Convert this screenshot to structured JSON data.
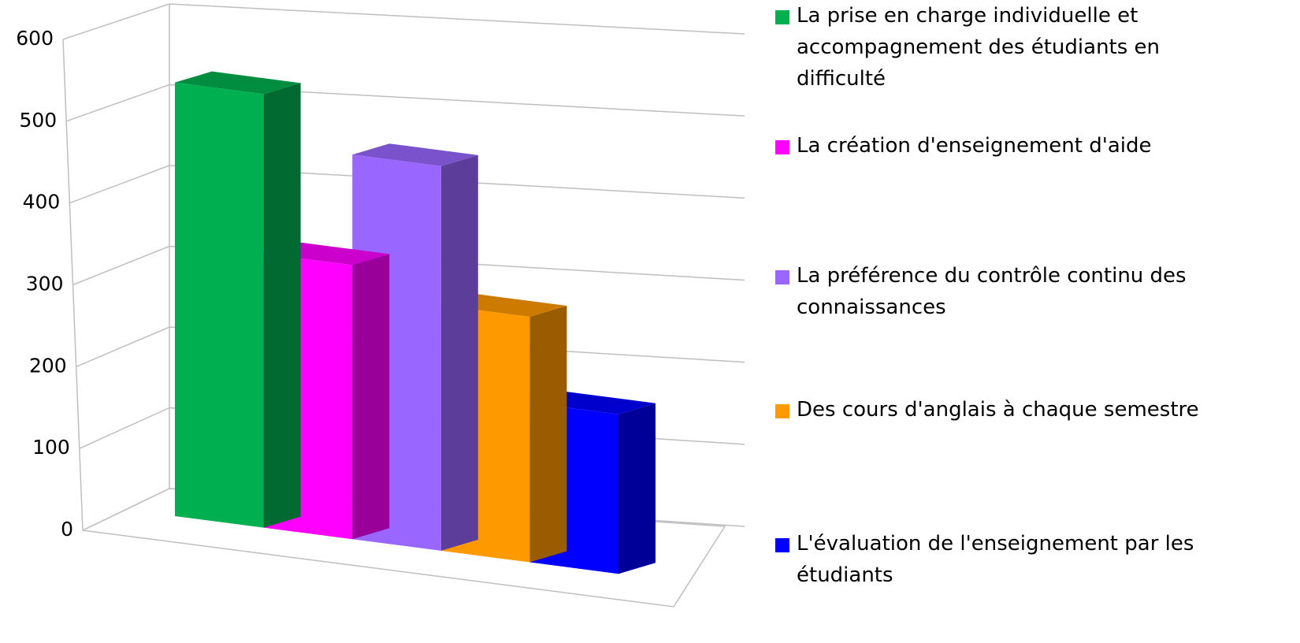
{
  "chart_data": {
    "type": "bar3d",
    "categories": [
      null
    ],
    "series": [
      {
        "name": "La prise en charge individuelle et accompagnement des étudiants en difficulté",
        "color": "#00b050",
        "values": [
          530
        ]
      },
      {
        "name": "La création d'enseignement d'aide",
        "color": "#ff00ff",
        "values": [
          335
        ]
      },
      {
        "name": "La préférence du contrôle continu des connaissances",
        "color": "#9966ff",
        "values": [
          470
        ]
      },
      {
        "name": "Des cours d'anglais à chaque semestre",
        "color": "#ff9900",
        "values": [
          300
        ]
      },
      {
        "name": "L'évaluation de l'enseignement par les étudiants",
        "color": "#0000ff",
        "values": [
          195
        ]
      }
    ],
    "ylim": [
      0,
      600
    ],
    "yticks": [
      0,
      100,
      200,
      300,
      400,
      500,
      600
    ],
    "grid": true,
    "legend": "right"
  }
}
